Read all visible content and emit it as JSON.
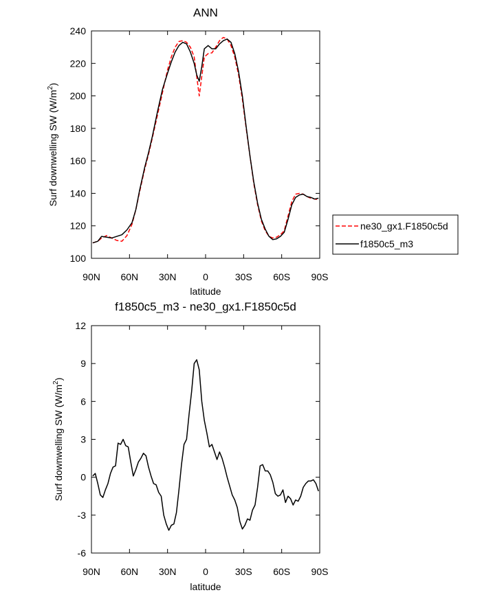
{
  "chart_data": [
    {
      "type": "line",
      "title": "ANN",
      "xlabel": "latitude",
      "ylabel_main": "Surf downwelling SW (W/m",
      "ylabel_sup": "2",
      "ylabel_end": ")",
      "xlim": [
        90,
        -90
      ],
      "ylim": [
        100,
        240
      ],
      "xticks": [
        {
          "value": 90,
          "label": "90N"
        },
        {
          "value": 60,
          "label": "60N"
        },
        {
          "value": 30,
          "label": "30N"
        },
        {
          "value": 0,
          "label": "0"
        },
        {
          "value": -30,
          "label": "30S"
        },
        {
          "value": -60,
          "label": "60S"
        },
        {
          "value": -90,
          "label": "90S"
        }
      ],
      "yticks": [
        100,
        120,
        140,
        160,
        180,
        200,
        220,
        240
      ],
      "grid": false,
      "legend_placement": "right",
      "series": [
        {
          "name": "ne30_gx1.F1850c5d",
          "color": "#ff0000",
          "dash": "dashed",
          "x": [
            89,
            85,
            82,
            78,
            74,
            70,
            66,
            62,
            58,
            55,
            52,
            48,
            45,
            42,
            38,
            34,
            30,
            27,
            24,
            21,
            18,
            15,
            12,
            9,
            7,
            5,
            3,
            1,
            -2,
            -5,
            -8,
            -11,
            -14,
            -17,
            -20,
            -23,
            -26,
            -29,
            -32,
            -35,
            -38,
            -41,
            -44,
            -47,
            -50,
            -53,
            -56,
            -59,
            -62,
            -65,
            -68,
            -71,
            -74,
            -77,
            -80,
            -83,
            -86,
            -89
          ],
          "y": [
            109.5,
            110.5,
            112.5,
            114,
            112.5,
            111,
            110.5,
            114,
            121,
            130,
            141,
            155,
            164,
            174,
            188,
            202,
            216,
            224,
            230,
            233.5,
            234,
            233,
            230,
            224,
            212,
            200,
            212,
            224,
            226,
            226.5,
            230,
            234,
            236,
            235,
            231,
            224,
            213,
            198,
            180,
            163,
            146,
            133,
            123,
            117,
            113.5,
            112.5,
            113,
            114.5,
            117,
            126,
            135,
            139.5,
            140,
            139.5,
            138,
            137,
            136.5,
            136
          ]
        },
        {
          "name": "f1850c5_m3",
          "color": "#000000",
          "dash": "solid",
          "x": [
            89,
            85,
            82,
            78,
            74,
            70,
            66,
            62,
            58,
            55,
            52,
            48,
            45,
            42,
            38,
            34,
            30,
            27,
            24,
            21,
            18,
            15,
            12,
            9,
            7,
            5,
            3,
            1,
            -2,
            -5,
            -8,
            -11,
            -14,
            -17,
            -20,
            -23,
            -26,
            -29,
            -32,
            -35,
            -38,
            -41,
            -44,
            -47,
            -50,
            -53,
            -56,
            -59,
            -62,
            -65,
            -68,
            -71,
            -74,
            -77,
            -80,
            -83,
            -86,
            -89
          ],
          "y": [
            109.5,
            110.5,
            113.5,
            113,
            112.5,
            113.5,
            114.5,
            117.5,
            122,
            130,
            142,
            156,
            165,
            175,
            190,
            204,
            214,
            221,
            227,
            231,
            233,
            232,
            227,
            220,
            213,
            209,
            218,
            229,
            231,
            229,
            229,
            232,
            234,
            235,
            233,
            226,
            215,
            200,
            181,
            163,
            147,
            134,
            124,
            118,
            113.5,
            111.5,
            112,
            113.5,
            116,
            124,
            133,
            137.5,
            139,
            139.5,
            138,
            137.5,
            136.5,
            137
          ]
        }
      ]
    },
    {
      "type": "line",
      "title": "f1850c5_m3 - ne30_gx1.F1850c5d",
      "xlabel": "latitude",
      "ylabel_main": "Surf downwelling SW (W/m",
      "ylabel_sup": "2",
      "ylabel_end": ")",
      "xlim": [
        90,
        -90
      ],
      "ylim": [
        -6,
        12
      ],
      "xticks": [
        {
          "value": 90,
          "label": "90N"
        },
        {
          "value": 60,
          "label": "60N"
        },
        {
          "value": 30,
          "label": "30N"
        },
        {
          "value": 0,
          "label": "0"
        },
        {
          "value": -30,
          "label": "30S"
        },
        {
          "value": -60,
          "label": "60S"
        },
        {
          "value": -90,
          "label": "90S"
        }
      ],
      "yticks": [
        -6,
        -3,
        0,
        3,
        6,
        9,
        12
      ],
      "grid": false,
      "series": [
        {
          "color": "#000000",
          "dash": "solid",
          "x": [
            89,
            87,
            85,
            83,
            81,
            79,
            77,
            75,
            73,
            71,
            69,
            67,
            65,
            63,
            61,
            59,
            57,
            55,
            53,
            51,
            49,
            47,
            45,
            43,
            41,
            39,
            37,
            35,
            33,
            31,
            29,
            27,
            25,
            23,
            21,
            19,
            17,
            15,
            13,
            11,
            9,
            7,
            5,
            3,
            1,
            -1,
            -3,
            -5,
            -7,
            -9,
            -11,
            -13,
            -15,
            -17,
            -19,
            -21,
            -23,
            -25,
            -27,
            -29,
            -31,
            -33,
            -35,
            -37,
            -39,
            -41,
            -43,
            -45,
            -47,
            -49,
            -51,
            -53,
            -55,
            -57,
            -59,
            -61,
            -63,
            -65,
            -67,
            -69,
            -71,
            -73,
            -75,
            -77,
            -79,
            -81,
            -83,
            -85,
            -87,
            -89
          ],
          "y": [
            0.1,
            0.3,
            -0.5,
            -1.4,
            -1.6,
            -1.0,
            -0.5,
            0.3,
            0.8,
            0.9,
            2.7,
            2.6,
            3.0,
            2.5,
            2.4,
            1.2,
            0.1,
            0.6,
            1.2,
            1.5,
            1.9,
            1.7,
            0.8,
            0.1,
            -0.5,
            -0.6,
            -1.2,
            -1.5,
            -3.0,
            -3.7,
            -4.2,
            -3.8,
            -3.7,
            -2.8,
            -1.0,
            1.0,
            2.6,
            3.0,
            5.0,
            6.8,
            9.0,
            9.3,
            8.5,
            6.0,
            4.5,
            3.5,
            2.4,
            2.6,
            2.0,
            1.4,
            2.0,
            1.5,
            0.8,
            0.0,
            -0.7,
            -1.4,
            -1.8,
            -2.4,
            -3.5,
            -4.1,
            -3.8,
            -3.3,
            -3.4,
            -2.6,
            -2.2,
            -0.8,
            0.9,
            1.0,
            0.5,
            0.5,
            0.2,
            -0.4,
            -1.3,
            -1.5,
            -1.4,
            -1.0,
            -2.0,
            -1.5,
            -1.7,
            -2.2,
            -1.8,
            -1.9,
            -1.5,
            -0.8,
            -0.5,
            -0.3,
            -0.3,
            -0.2,
            -0.5,
            -1.1
          ]
        }
      ]
    }
  ]
}
